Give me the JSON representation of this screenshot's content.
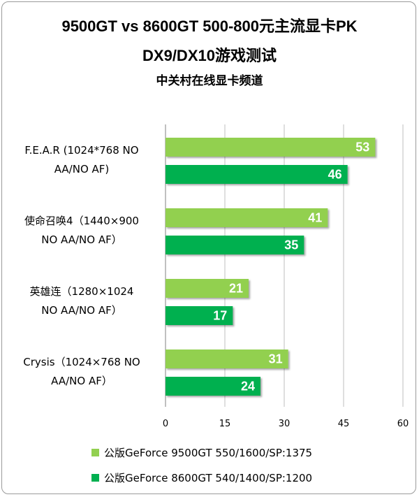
{
  "chart_data": {
    "type": "bar",
    "orientation": "horizontal",
    "title": "9500GT vs 8600GT 500-800元主流显卡PK",
    "subtitle": "DX9/DX10游戏测试",
    "source": "中关村在线显卡频道",
    "categories": [
      [
        "F.E.A.R (1024*768 NO",
        "AA/NO AF)"
      ],
      [
        "使命召唤4（1440×900",
        "NO AA/NO AF）"
      ],
      [
        "英雄连（1280×1024",
        "NO AA/NO AF）"
      ],
      [
        "Crysis（1024×768 NO",
        "AA/NO AF）"
      ]
    ],
    "series": [
      {
        "name": "公版GeForce 9500GT 550/1600/SP:1375",
        "values": [
          53,
          41,
          21,
          31
        ],
        "color": "#92d050"
      },
      {
        "name": "公版GeForce 8600GT 540/1400/SP:1200",
        "values": [
          46,
          35,
          17,
          24
        ],
        "color": "#00b050"
      }
    ],
    "xlim": [
      0,
      60
    ],
    "xticks": [
      "0",
      "15",
      "30",
      "45",
      "60"
    ],
    "grid": true,
    "legend_position": "bottom"
  }
}
